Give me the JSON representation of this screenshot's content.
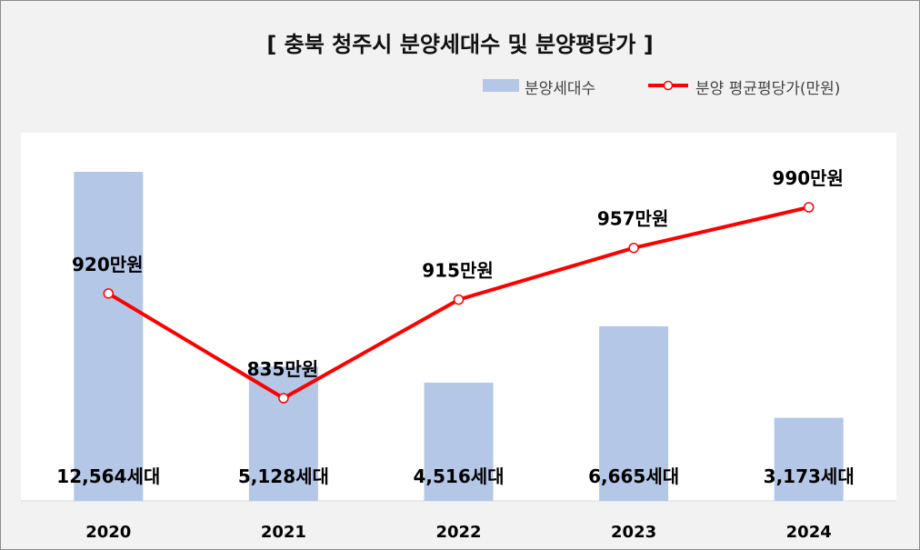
{
  "chart_data": {
    "type": "bar",
    "title": "[ 충북 청주시 분양세대수 및 분양평당가 ]",
    "categories": [
      "2020",
      "2021",
      "2022",
      "2023",
      "2024"
    ],
    "series": [
      {
        "name": "분양세대수",
        "type": "bar",
        "values": [
          12564,
          5128,
          4516,
          6665,
          3173
        ],
        "labels": [
          "12,564세대",
          "5,128세대",
          "4,516세대",
          "6,665세대",
          "3,173세대"
        ],
        "color": "#b4c7e7"
      },
      {
        "name": "분양 평균평당가(만원)",
        "type": "line",
        "values": [
          920,
          835,
          915,
          957,
          990
        ],
        "labels": [
          "920만원",
          "835만원",
          "915만원",
          "957만원",
          "990만원"
        ],
        "color": "#ff0000"
      }
    ],
    "legend_position": "top-right",
    "grid": false
  }
}
